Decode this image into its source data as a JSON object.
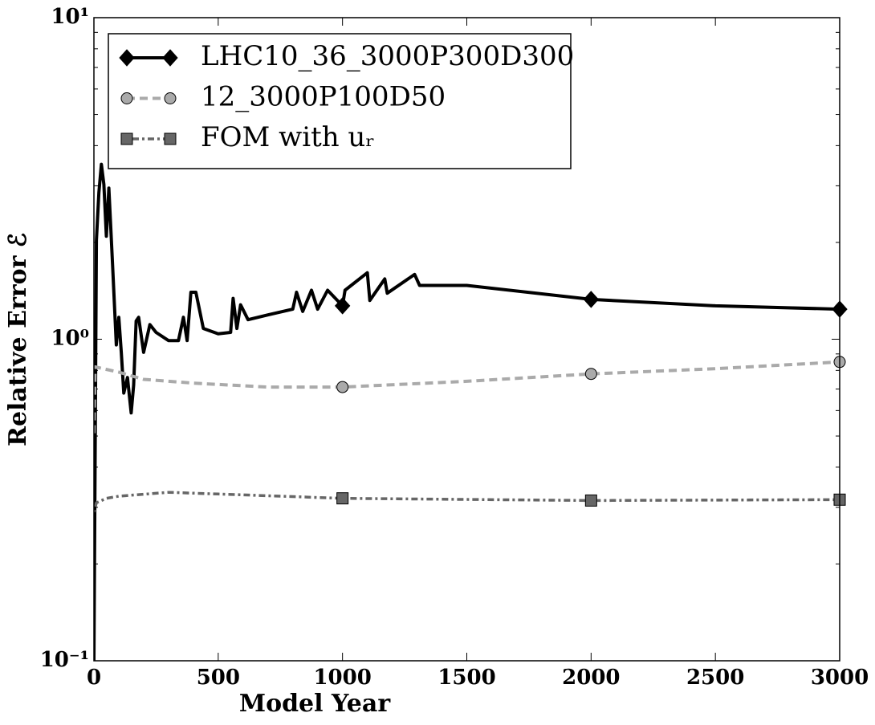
{
  "chart_data": {
    "type": "line",
    "xlabel": "Model Year",
    "ylabel": "Relative Error ℰ",
    "xlim": [
      0,
      3000
    ],
    "xticks": [
      0,
      500,
      1000,
      1500,
      2000,
      2500,
      3000
    ],
    "ylim": [
      0.1,
      10
    ],
    "yscale": "log",
    "yticks": [
      {
        "value": 0.1,
        "label": "10⁻¹"
      },
      {
        "value": 1,
        "label": "10⁰"
      },
      {
        "value": 10,
        "label": "10¹"
      }
    ],
    "legend": "upper left",
    "markevery": 1000,
    "series": [
      {
        "name": "LHC10_36_3000P300D300",
        "color": "#000000",
        "linestyle": "solid",
        "marker": "diamond",
        "x": [
          0,
          10,
          20,
          30,
          40,
          50,
          60,
          75,
          90,
          100,
          110,
          120,
          135,
          150,
          160,
          170,
          180,
          200,
          225,
          250,
          300,
          340,
          360,
          375,
          390,
          410,
          440,
          500,
          550,
          560,
          575,
          590,
          620,
          700,
          800,
          815,
          840,
          875,
          900,
          940,
          1000,
          1010,
          1100,
          1110,
          1170,
          1180,
          1290,
          1310,
          1500,
          2000,
          2500,
          3000
        ],
        "values": [
          0.1,
          2.03,
          2.86,
          3.5,
          3.03,
          2.09,
          2.95,
          1.71,
          0.96,
          1.17,
          0.91,
          0.68,
          0.76,
          0.59,
          0.72,
          1.14,
          1.17,
          0.91,
          1.11,
          1.05,
          0.99,
          0.99,
          1.17,
          0.99,
          1.4,
          1.4,
          1.08,
          1.04,
          1.05,
          1.34,
          1.08,
          1.28,
          1.15,
          1.19,
          1.24,
          1.4,
          1.22,
          1.42,
          1.24,
          1.42,
          1.27,
          1.42,
          1.61,
          1.32,
          1.54,
          1.39,
          1.59,
          1.47,
          1.47,
          1.33,
          1.27,
          1.24
        ]
      },
      {
        "name": "12_3000P100D50",
        "color": "#aaaaaa",
        "linestyle": "dashed",
        "marker": "circle",
        "x": [
          0,
          5,
          100,
          200,
          400,
          700,
          1000,
          1500,
          2000,
          2500,
          3000
        ],
        "values": [
          0.51,
          0.82,
          0.79,
          0.75,
          0.73,
          0.71,
          0.71,
          0.74,
          0.78,
          0.81,
          0.85
        ]
      },
      {
        "name": "FOM with uᵣ",
        "color": "#666666",
        "linestyle": "dashdot",
        "marker": "square",
        "x": [
          0,
          10,
          50,
          100,
          300,
          500,
          1000,
          2000,
          3000
        ],
        "values": [
          0.29,
          0.31,
          0.32,
          0.325,
          0.334,
          0.33,
          0.32,
          0.315,
          0.317
        ]
      }
    ]
  }
}
